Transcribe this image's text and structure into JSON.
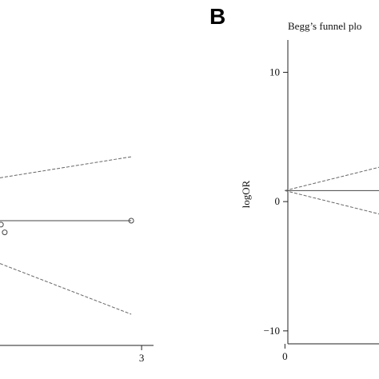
{
  "chart_data": [
    {
      "type": "scatter",
      "panel_label": "",
      "title": "",
      "xlabel": "",
      "ylabel": "",
      "x_ticks": [
        "3"
      ],
      "xlim": [
        0,
        3.1
      ],
      "ylim": [
        -1.6,
        1.6
      ],
      "grid": false,
      "points": [
        {
          "x": 0.02,
          "y": -0.05
        },
        {
          "x": 0.1,
          "y": -0.15
        },
        {
          "x": 2.78,
          "y": 0.0
        }
      ],
      "pooled_line_y": 0.0,
      "funnel_upper": [
        {
          "x": 0.0,
          "y": 0.55
        },
        {
          "x": 2.78,
          "y": 0.82
        }
      ],
      "funnel_lower": [
        {
          "x": 0.0,
          "y": -0.55
        },
        {
          "x": 2.78,
          "y": -1.2
        }
      ]
    },
    {
      "type": "scatter",
      "panel_label": "B",
      "title": "Begg’s funnel plo",
      "xlabel": "",
      "ylabel": "logOR",
      "x_ticks": [
        "0"
      ],
      "y_ticks": [
        "10",
        "0",
        "−10"
      ],
      "xlim": [
        -0.3,
        3
      ],
      "ylim": [
        -11,
        12.5
      ],
      "grid": false,
      "points": [],
      "pooled_line_y": 0.85,
      "funnel_upper": [
        {
          "x": 0.0,
          "y": 0.85
        },
        {
          "x": 3.0,
          "y": 2.9
        }
      ],
      "funnel_lower": [
        {
          "x": 0.0,
          "y": 0.85
        },
        {
          "x": 3.0,
          "y": -1.2
        }
      ]
    }
  ]
}
